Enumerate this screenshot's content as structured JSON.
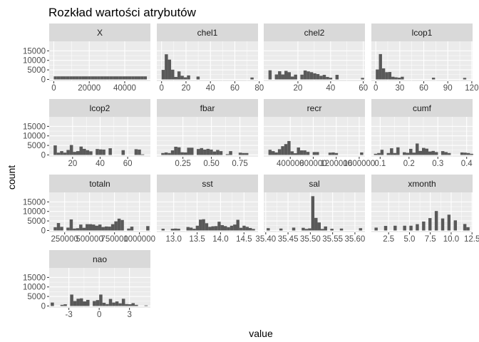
{
  "chart_data": {
    "type": "bar",
    "title": "Rozkład wartości atrybutów",
    "xlabel": "value",
    "ylabel": "count",
    "colors": {
      "panel_bg": "#EBEBEB",
      "strip_bg": "#D9D9D9",
      "grid": "#FFFFFF",
      "bar": "#595959",
      "tick": "#4D4D4D"
    },
    "y_ticks": [
      {
        "value": 0,
        "label": "0"
      },
      {
        "value": 5000,
        "label": "5000"
      },
      {
        "value": 10000,
        "label": "10000"
      },
      {
        "value": 15000,
        "label": "15000"
      }
    ],
    "ylim": [
      -950,
      20000
    ],
    "grid": true,
    "facets": [
      {
        "name": "X",
        "xlim": [
          -2600,
          54500
        ],
        "x_ticks": [
          {
            "value": 0,
            "label": "0"
          },
          {
            "value": 20000,
            "label": "20000"
          },
          {
            "value": 40000,
            "label": "40000"
          }
        ],
        "bins": {
          "start": 0,
          "width": 1750,
          "counts": [
            1600,
            1600,
            1600,
            1600,
            1600,
            1600,
            1600,
            1600,
            1600,
            1600,
            1600,
            1600,
            1600,
            1600,
            1600,
            1600,
            1600,
            1600,
            1600,
            1600,
            1600,
            1600,
            1600,
            1600,
            1600,
            1600,
            1600,
            1600,
            1600,
            1600
          ]
        }
      },
      {
        "name": "chel1",
        "xlim": [
          -3.9,
          79
        ],
        "x_ticks": [
          {
            "value": 0,
            "label": "0"
          },
          {
            "value": 20,
            "label": "20"
          },
          {
            "value": 40,
            "label": "40"
          },
          {
            "value": 60,
            "label": "60"
          },
          {
            "value": 80,
            "label": "80"
          }
        ],
        "bins": {
          "start": 0,
          "width": 2.6,
          "counts": [
            5000,
            13200,
            10400,
            5100,
            1300,
            4200,
            1900,
            1100,
            2100,
            0,
            0,
            1500,
            0,
            0,
            0,
            0,
            0,
            0,
            0,
            0,
            0,
            0,
            0,
            0,
            0,
            0,
            0,
            0,
            1000
          ]
        }
      },
      {
        "name": "chel2",
        "xlim": [
          -0.9,
          61
        ],
        "x_ticks": [
          {
            "value": 20,
            "label": "20"
          },
          {
            "value": 40,
            "label": "40"
          },
          {
            "value": 60,
            "label": "60"
          }
        ],
        "bins": {
          "start": 2,
          "width": 1.95,
          "counts": [
            4800,
            0,
            2600,
            4300,
            2600,
            4500,
            3800,
            1500,
            2500,
            0,
            2500,
            4700,
            4200,
            3800,
            3200,
            2800,
            1900,
            2400,
            1300,
            900,
            0,
            2400,
            0,
            0,
            0,
            0,
            0,
            0,
            0,
            800
          ]
        }
      },
      {
        "name": "lcop1",
        "xlim": [
          -5.5,
          121
        ],
        "x_ticks": [
          {
            "value": 0,
            "label": "0"
          },
          {
            "value": 30,
            "label": "30"
          },
          {
            "value": 60,
            "label": "60"
          },
          {
            "value": 90,
            "label": "90"
          },
          {
            "value": 120,
            "label": "120"
          }
        ],
        "bins": {
          "start": 0,
          "width": 3.9,
          "counts": [
            5200,
            13300,
            5800,
            3800,
            3900,
            1400,
            1100,
            900,
            1400,
            0,
            0,
            0,
            0,
            0,
            0,
            0,
            0,
            0,
            900,
            0,
            0,
            0,
            0,
            0,
            0,
            0,
            0,
            0,
            800
          ]
        }
      },
      {
        "name": "lcop2",
        "xlim": [
          3,
          76.5
        ],
        "x_ticks": [
          {
            "value": 20,
            "label": "20"
          },
          {
            "value": 40,
            "label": "40"
          },
          {
            "value": 60,
            "label": "60"
          }
        ],
        "bins": {
          "start": 6.2,
          "width": 2.35,
          "counts": [
            5000,
            1200,
            2000,
            1200,
            2600,
            5200,
            1600,
            2000,
            4400,
            3200,
            2500,
            1900,
            0,
            3100,
            2900,
            2800,
            0,
            3500,
            0,
            0,
            0,
            2500,
            0,
            0,
            0,
            3000,
            2800,
            300
          ]
        }
      },
      {
        "name": "fbar",
        "xlim": [
          0.021,
          0.909
        ],
        "x_ticks": [
          {
            "value": 0.25,
            "label": "0.25"
          },
          {
            "value": 0.5,
            "label": "0.50"
          },
          {
            "value": 0.75,
            "label": "0.75"
          }
        ],
        "bins": {
          "start": 0.06,
          "width": 0.0283,
          "counts": [
            1000,
            1300,
            1000,
            2400,
            4300,
            4000,
            1400,
            1300,
            3800,
            3800,
            0,
            3100,
            3600,
            2800,
            3200,
            2800,
            1800,
            2600,
            2000,
            0,
            400,
            2000,
            0,
            0,
            1200,
            1000,
            1000,
            0,
            0,
            0
          ]
        }
      },
      {
        "name": "recr",
        "xlim": [
          -62000,
          1700000
        ],
        "x_ticks": [
          {
            "value": 400000,
            "label": "400000"
          },
          {
            "value": 800000,
            "label": "800000"
          },
          {
            "value": 1200000,
            "label": "1200000"
          },
          {
            "value": 1600000,
            "label": "1600000"
          }
        ],
        "bins": {
          "start": 20000,
          "width": 55000,
          "counts": [
            2700,
            2000,
            1300,
            3000,
            4600,
            5700,
            7300,
            1900,
            900,
            3900,
            2400,
            2400,
            1600,
            0,
            1500,
            1500,
            0,
            0,
            0,
            1200,
            1300,
            1000,
            0,
            0,
            0,
            0,
            0,
            0,
            0,
            1300
          ]
        }
      },
      {
        "name": "cumf",
        "xlim": [
          0.0695,
          0.4205
        ],
        "x_ticks": [
          {
            "value": 0.1,
            "label": "0.1"
          },
          {
            "value": 0.2,
            "label": "0.2"
          },
          {
            "value": 0.3,
            "label": "0.3"
          },
          {
            "value": 0.4,
            "label": "0.4"
          }
        ],
        "bins": {
          "start": 0.0785,
          "width": 0.0111,
          "counts": [
            600,
            1000,
            2700,
            0,
            1000,
            3500,
            1000,
            4000,
            0,
            1400,
            1100,
            3200,
            1200,
            6000,
            2100,
            3700,
            3300,
            1800,
            2100,
            1500,
            0,
            2000,
            1500,
            1000,
            0,
            0,
            0,
            1300,
            1200,
            1000,
            600
          ]
        }
      },
      {
        "name": "totaln",
        "xlim": [
          95000,
          1110000
        ],
        "x_ticks": [
          {
            "value": 250000,
            "label": "250000"
          },
          {
            "value": 500000,
            "label": "500000"
          },
          {
            "value": 750000,
            "label": "750000"
          },
          {
            "value": 1000000,
            "label": "1000000"
          }
        ],
        "bins": {
          "start": 140000,
          "width": 32000,
          "counts": [
            1700,
            3900,
            1900,
            0,
            1500,
            5800,
            1000,
            1200,
            3100,
            1400,
            3300,
            3300,
            3100,
            2500,
            3100,
            1800,
            2100,
            2000,
            3300,
            4800,
            6200,
            5500,
            0,
            1000,
            2000,
            0,
            0,
            0,
            0,
            2300
          ]
        }
      },
      {
        "name": "sst",
        "xlim": [
          12.64,
          14.8
        ],
        "x_ticks": [
          {
            "value": 13,
            "label": "13.0"
          },
          {
            "value": 13.5,
            "label": "13.5"
          },
          {
            "value": 14,
            "label": "14.0"
          },
          {
            "value": 14.5,
            "label": "14.5"
          }
        ],
        "bins": {
          "start": 12.74,
          "width": 0.0665,
          "counts": [
            900,
            0,
            0,
            900,
            1000,
            900,
            0,
            0,
            1800,
            1500,
            900,
            2500,
            5700,
            5900,
            3800,
            1900,
            2200,
            2300,
            4600,
            2800,
            2300,
            1700,
            2500,
            3100,
            5600,
            1400,
            2500,
            1900,
            1300,
            800
          ]
        }
      },
      {
        "name": "sal",
        "xlim": [
          35.3955,
          35.6225
        ],
        "x_ticks": [
          {
            "value": 35.4,
            "label": "35.40"
          },
          {
            "value": 35.45,
            "label": "35.45"
          },
          {
            "value": 35.5,
            "label": "35.50"
          },
          {
            "value": 35.55,
            "label": "35.55"
          },
          {
            "value": 35.6,
            "label": "35.60"
          }
        ],
        "bins": {
          "start": 35.402,
          "width": 0.00714,
          "counts": [
            1200,
            0,
            0,
            0,
            1000,
            0,
            0,
            0,
            1500,
            0,
            0,
            1400,
            800,
            1100,
            18000,
            6600,
            4200,
            800,
            2100,
            0,
            900,
            0,
            0,
            1000,
            0,
            0,
            0,
            0,
            0,
            1200
          ]
        }
      },
      {
        "name": "xmonth",
        "xlim": [
          0.43,
          12.57
        ],
        "x_ticks": [
          {
            "value": 2.5,
            "label": "2.5"
          },
          {
            "value": 5,
            "label": "5.0"
          },
          {
            "value": 7.5,
            "label": "7.5"
          },
          {
            "value": 10,
            "label": "10.0"
          },
          {
            "value": 12.5,
            "label": "12.5"
          }
        ],
        "bins": {
          "start": 0.81,
          "width": 0.38,
          "counts": [
            1500,
            0,
            0,
            2400,
            0,
            0,
            2500,
            0,
            0,
            2500,
            0,
            2500,
            0,
            3300,
            0,
            4700,
            0,
            6500,
            0,
            10200,
            0,
            6300,
            0,
            8300,
            0,
            5300,
            0,
            0,
            3400,
            1700
          ]
        }
      },
      {
        "name": "nao",
        "xlim": [
          -4.95,
          5.07
        ],
        "x_ticks": [
          {
            "value": -3,
            "label": "-3"
          },
          {
            "value": 0,
            "label": "0"
          },
          {
            "value": 3,
            "label": "3"
          }
        ],
        "bins": {
          "start": -4.8,
          "width": 0.32,
          "counts": [
            1800,
            0,
            0,
            600,
            900,
            0,
            6000,
            2600,
            3800,
            4000,
            2400,
            3200,
            0,
            2600,
            3100,
            6000,
            1700,
            1000,
            3700,
            1800,
            2400,
            1400,
            3800,
            1000,
            900,
            1500,
            600,
            0,
            0,
            300
          ]
        }
      }
    ]
  }
}
